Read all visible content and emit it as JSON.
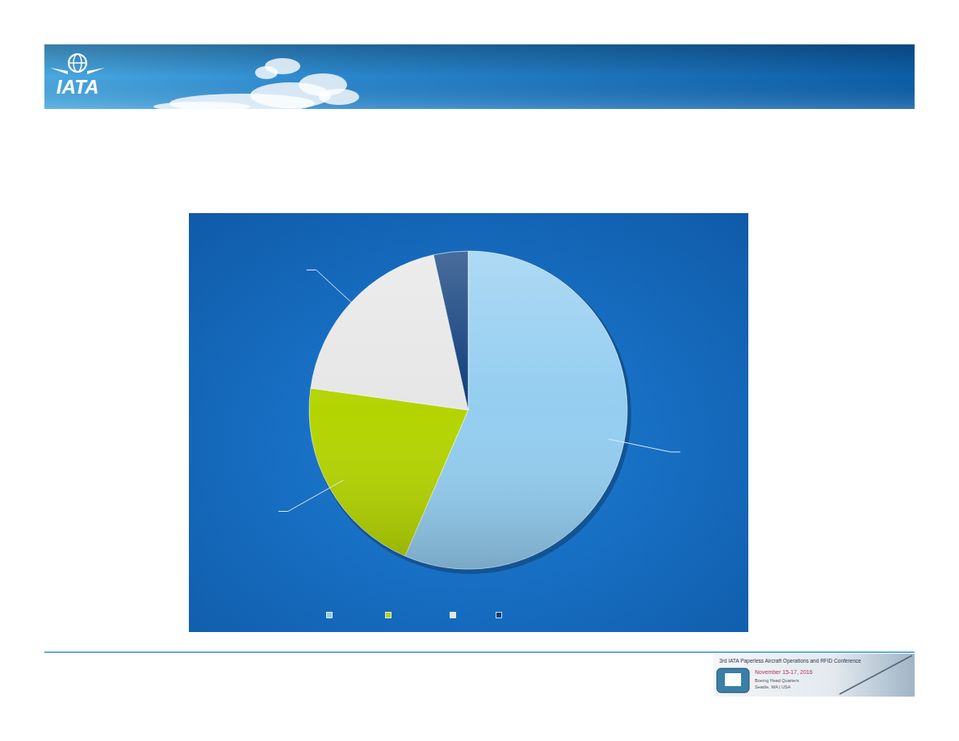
{
  "header": {
    "logo": "IATA"
  },
  "footer": {
    "conference": "3rd IATA Paperless Aircraft Operations and RFID Conference",
    "dates": "November 15-17, 2016",
    "venue": "Boeing Head Quarters",
    "place": "Seattle, WA | USA"
  },
  "chart_data": {
    "type": "pie",
    "categories": [
      null,
      null,
      null,
      null
    ],
    "values": [
      56.5,
      20.7,
      19.3,
      3.5
    ],
    "colors": [
      "#93cdf0",
      "#b4d400",
      "#e6e6e6",
      "#0d3c7a"
    ],
    "legend": "bottom"
  }
}
